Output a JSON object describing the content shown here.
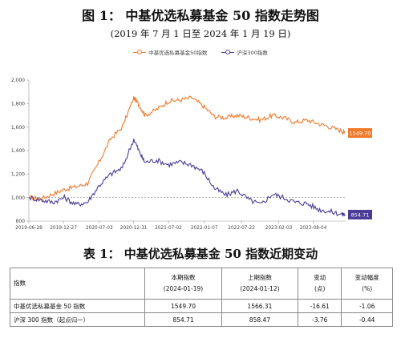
{
  "figure": {
    "title": "图 1：  中基优选私募基金 50 指数走势图",
    "subtitle": "(2019 年 7 月 1 日至 2024 年 1 月 19 日)"
  },
  "chart_data": {
    "type": "line",
    "x": [
      "2019-07-01",
      "2019-09-01",
      "2019-11-01",
      "2020-01-01",
      "2020-03-01",
      "2020-05-01",
      "2020-07-01",
      "2020-09-01",
      "2020-11-01",
      "2021-01-01",
      "2021-02-01",
      "2021-03-01",
      "2021-05-01",
      "2021-07-01",
      "2021-09-01",
      "2021-11-01",
      "2022-01-01",
      "2022-03-01",
      "2022-05-01",
      "2022-07-01",
      "2022-09-01",
      "2022-11-01",
      "2023-01-01",
      "2023-03-01",
      "2023-05-01",
      "2023-07-01",
      "2023-09-01",
      "2023-11-01",
      "2024-01-01",
      "2024-01-19"
    ],
    "series": [
      {
        "name": "中基优选私募基金50指数",
        "color": "#f07a2c",
        "values": [
          1000,
          990,
          1030,
          1070,
          1090,
          1120,
          1300,
          1500,
          1600,
          1850,
          1780,
          1700,
          1750,
          1820,
          1830,
          1850,
          1780,
          1690,
          1680,
          1700,
          1680,
          1660,
          1700,
          1680,
          1640,
          1660,
          1630,
          1600,
          1566.31,
          1549.7
        ]
      },
      {
        "name": "沪深300指数",
        "color": "#4b3d96",
        "values": [
          1000,
          980,
          960,
          1000,
          940,
          960,
          1100,
          1200,
          1250,
          1500,
          1380,
          1300,
          1320,
          1280,
          1300,
          1280,
          1220,
          1080,
          1020,
          1060,
          980,
          940,
          1030,
          1000,
          960,
          950,
          900,
          880,
          858.47,
          854.71
        ]
      }
    ],
    "last_labels": [
      "1549.70",
      "854.71"
    ],
    "xticks": [
      "2019-06-28",
      "2019-12-27",
      "2020-07-03",
      "2020-12-31",
      "2021-07-02",
      "2022-01-07",
      "2022-07-22",
      "2023-02-03",
      "2023-08-04"
    ],
    "yticks": [
      "800",
      "1,000",
      "1,200",
      "1,400",
      "1,600",
      "1,800",
      "2,000"
    ],
    "ylim": [
      800,
      2000
    ],
    "reference_line": 1000,
    "legend_position": "top-center"
  },
  "table": {
    "title": "表 1：  中基优选私募基金 50 指数近期变动",
    "headers": [
      {
        "line1": "指数",
        "line2": ""
      },
      {
        "line1": "本期指数",
        "line2": "(2024-01-19)"
      },
      {
        "line1": "上期指数",
        "line2": "(2024-01-12)"
      },
      {
        "line1": "变动",
        "line2": "(点)"
      },
      {
        "line1": "变动幅度",
        "line2": "(%)"
      }
    ],
    "rows": [
      {
        "name": "中基优选私募基金 50 指数",
        "current": "1549.70",
        "previous": "1566.31",
        "change": "-16.61",
        "pct": "-1.06"
      },
      {
        "name": "沪深 300 指数（起点归一）",
        "current": "854.71",
        "previous": "858.47",
        "change": "-3.76",
        "pct": "-0.44"
      }
    ]
  }
}
